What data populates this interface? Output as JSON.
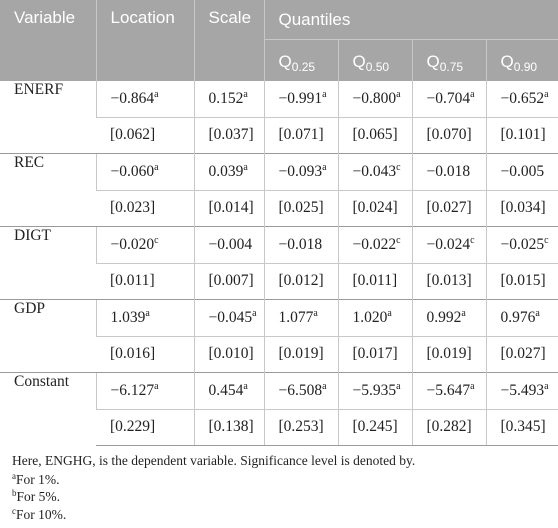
{
  "header": {
    "variable": "Variable",
    "location": "Location",
    "scale": "Scale",
    "quantiles": "Quantiles",
    "q_prefix": "Q",
    "q_labels": [
      "0.25",
      "0.50",
      "0.75",
      "0.90"
    ]
  },
  "rows": [
    {
      "name": "ENERF",
      "est": [
        {
          "v": "−0.864",
          "s": "a"
        },
        {
          "v": "0.152",
          "s": "a"
        },
        {
          "v": "−0.991",
          "s": "a"
        },
        {
          "v": "−0.800",
          "s": "a"
        },
        {
          "v": "−0.704",
          "s": "a"
        },
        {
          "v": "−0.652",
          "s": "a"
        }
      ],
      "se": [
        "[0.062]",
        "[0.037]",
        "[0.071]",
        "[0.065]",
        "[0.070]",
        "[0.101]"
      ]
    },
    {
      "name": "REC",
      "est": [
        {
          "v": "−0.060",
          "s": "a"
        },
        {
          "v": "0.039",
          "s": "a"
        },
        {
          "v": "−0.093",
          "s": "a"
        },
        {
          "v": "−0.043",
          "s": "c"
        },
        {
          "v": "−0.018",
          "s": ""
        },
        {
          "v": "−0.005",
          "s": ""
        }
      ],
      "se": [
        "[0.023]",
        "[0.014]",
        "[0.025]",
        "[0.024]",
        "[0.027]",
        "[0.034]"
      ]
    },
    {
      "name": "DIGT",
      "est": [
        {
          "v": "−0.020",
          "s": "c"
        },
        {
          "v": "−0.004",
          "s": ""
        },
        {
          "v": "−0.018",
          "s": ""
        },
        {
          "v": "−0.022",
          "s": "c"
        },
        {
          "v": "−0.024",
          "s": "c"
        },
        {
          "v": "−0.025",
          "s": "c"
        }
      ],
      "se": [
        "[0.011]",
        "[0.007]",
        "[0.012]",
        "[0.011]",
        "[0.013]",
        "[0.015]"
      ]
    },
    {
      "name": "GDP",
      "est": [
        {
          "v": "1.039",
          "s": "a"
        },
        {
          "v": "−0.045",
          "s": "a"
        },
        {
          "v": "1.077",
          "s": "a"
        },
        {
          "v": "1.020",
          "s": "a"
        },
        {
          "v": "0.992",
          "s": "a"
        },
        {
          "v": "0.976",
          "s": "a"
        }
      ],
      "se": [
        "[0.016]",
        "[0.010]",
        "[0.019]",
        "[0.017]",
        "[0.019]",
        "[0.027]"
      ]
    },
    {
      "name": "Constant",
      "est": [
        {
          "v": "−6.127",
          "s": "a"
        },
        {
          "v": "0.454",
          "s": "a"
        },
        {
          "v": "−6.508",
          "s": "a"
        },
        {
          "v": "−5.935",
          "s": "a"
        },
        {
          "v": "−5.647",
          "s": "a"
        },
        {
          "v": "−5.493",
          "s": "a"
        }
      ],
      "se": [
        "[0.229]",
        "[0.138]",
        "[0.253]",
        "[0.245]",
        "[0.282]",
        "[0.345]"
      ]
    }
  ],
  "notes": {
    "main": "Here, ENGHG, is the dependent variable. Significance level is denoted by.",
    "items": [
      {
        "mark": "a",
        "text": "For 1%."
      },
      {
        "mark": "b",
        "text": "For 5%."
      },
      {
        "mark": "c",
        "text": "For 10%."
      }
    ]
  }
}
